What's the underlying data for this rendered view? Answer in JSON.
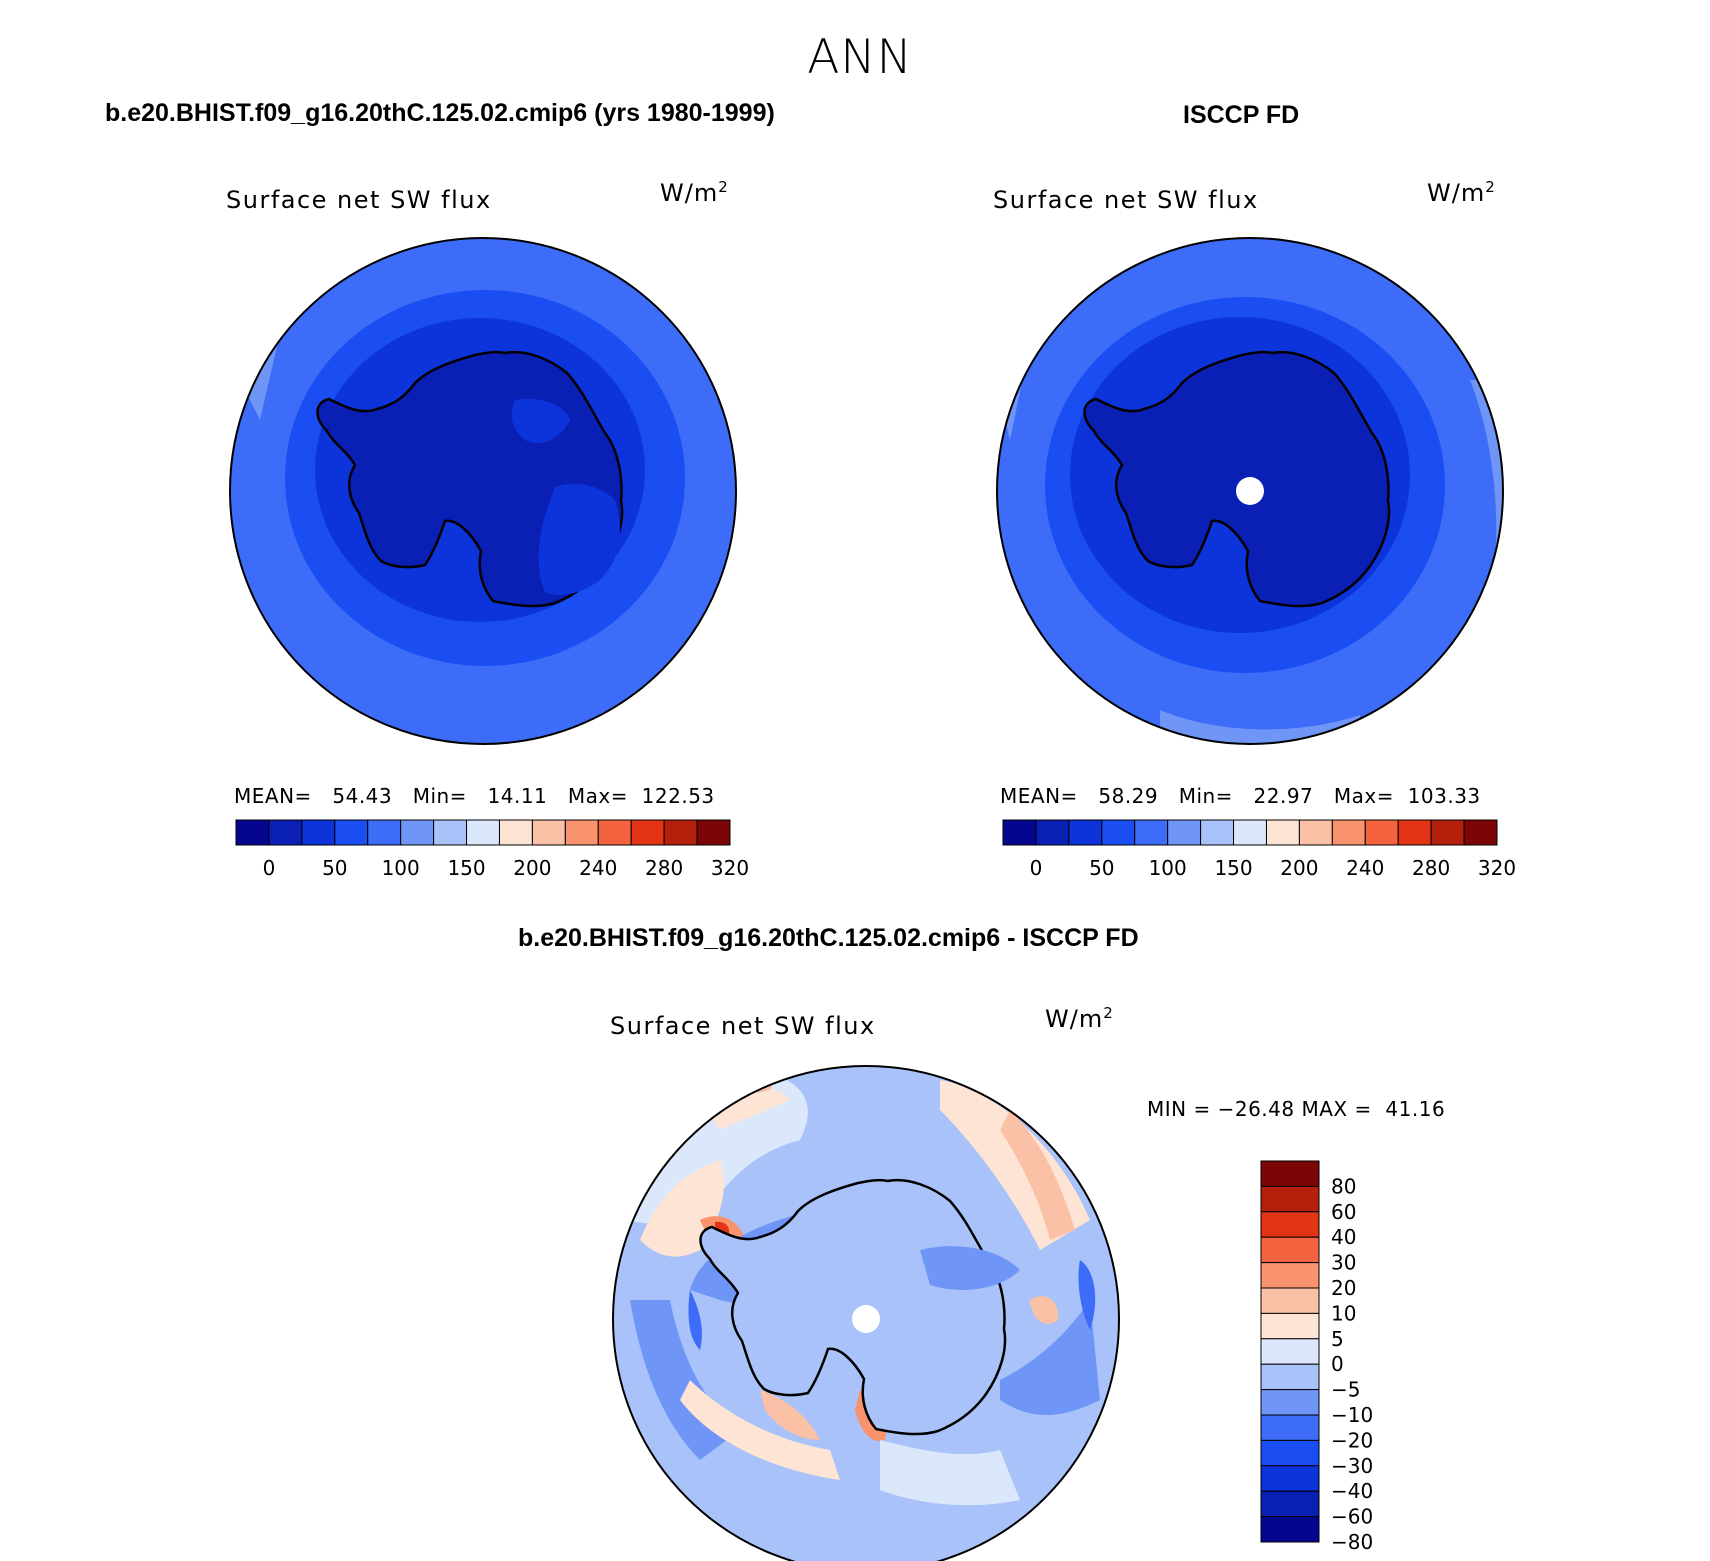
{
  "page_title": "ANN",
  "panels": [
    {
      "id": "model",
      "heading": "b.e20.BHIST.f09_g16.20thC.125.02.cmip6 (yrs 1980-1999)",
      "variable": "Surface net SW flux",
      "units_base": "W/m",
      "units_exp": "2",
      "stats_text": "MEAN=   54.43   Min=   14.11   Max=  122.53",
      "has_missing_pole": false
    },
    {
      "id": "obs",
      "heading": "ISCCP FD",
      "variable": "Surface net SW flux",
      "units_base": "W/m",
      "units_exp": "2",
      "stats_text": "MEAN=   58.29   Min=   22.97   Max=  103.33",
      "has_missing_pole": true
    },
    {
      "id": "diff",
      "heading": "b.e20.BHIST.f09_g16.20thC.125.02.cmip6 - ISCCP FD",
      "variable": "Surface net SW flux",
      "units_base": "W/m",
      "units_exp": "2",
      "stats_text": "MIN = −26.48 MAX =  41.16",
      "has_missing_pole": true
    }
  ],
  "chart_data": [
    {
      "type": "heatmap",
      "projection": "south-polar stereographic",
      "title": "Surface net SW flux",
      "units": "W/m2",
      "mean": 54.43,
      "min": 14.11,
      "max": 122.53,
      "colorbar_orientation": "horizontal",
      "colorbar_tick_labels": [
        "0",
        "50",
        "100",
        "150",
        "200",
        "240",
        "280",
        "320"
      ],
      "colorbar_colors": [
        "#05068f",
        "#0a1fb4",
        "#0d34da",
        "#1a4ef2",
        "#3d6df8",
        "#6f95f7",
        "#a9c2f9",
        "#dbe8fb",
        "#fde4d4",
        "#fbc1a6",
        "#f8936d",
        "#f4633f",
        "#e33516",
        "#b5200c",
        "#7c0606"
      ],
      "regions": [
        {
          "name": "open ocean",
          "approx_value": 100
        },
        {
          "name": "sea ice zone",
          "approx_value": 60
        },
        {
          "name": "antarctic continent",
          "approx_value": 20
        }
      ]
    },
    {
      "type": "heatmap",
      "projection": "south-polar stereographic",
      "title": "Surface net SW flux",
      "units": "W/m2",
      "mean": 58.29,
      "min": 22.97,
      "max": 103.33,
      "colorbar_orientation": "horizontal",
      "colorbar_tick_labels": [
        "0",
        "50",
        "100",
        "150",
        "200",
        "240",
        "280",
        "320"
      ],
      "colorbar_colors": [
        "#05068f",
        "#0a1fb4",
        "#0d34da",
        "#1a4ef2",
        "#3d6df8",
        "#6f95f7",
        "#a9c2f9",
        "#dbe8fb",
        "#fde4d4",
        "#fbc1a6",
        "#f8936d",
        "#f4633f",
        "#e33516",
        "#b5200c",
        "#7c0606"
      ],
      "regions": [
        {
          "name": "open ocean",
          "approx_value": 100
        },
        {
          "name": "sea ice zone",
          "approx_value": 70
        },
        {
          "name": "antarctic continent",
          "approx_value": 25
        },
        {
          "name": "pole",
          "approx_value": null
        }
      ]
    },
    {
      "type": "heatmap",
      "projection": "south-polar stereographic",
      "title": "Surface net SW flux",
      "units": "W/m2",
      "min": -26.48,
      "max": 41.16,
      "colorbar_orientation": "vertical",
      "colorbar_tick_labels": [
        "80",
        "60",
        "40",
        "30",
        "20",
        "10",
        "5",
        "0",
        "−5",
        "−10",
        "−20",
        "−30",
        "−40",
        "−60",
        "−80"
      ],
      "colorbar_colors": [
        "#7c0606",
        "#b5200c",
        "#e33516",
        "#f4633f",
        "#f8936d",
        "#fbc1a6",
        "#fde4d4",
        "#dbe8fb",
        "#a9c2f9",
        "#6f95f7",
        "#3d6df8",
        "#1a4ef2",
        "#0d34da",
        "#0a1fb4",
        "#05068f"
      ],
      "regions": [
        {
          "name": "continent",
          "approx_value": -10
        },
        {
          "name": "southern ocean",
          "approx_value": -15
        },
        {
          "name": "coastal positive anomalies",
          "approx_value": 20
        },
        {
          "name": "mid-latitude positive patches",
          "approx_value": 3
        }
      ]
    }
  ]
}
